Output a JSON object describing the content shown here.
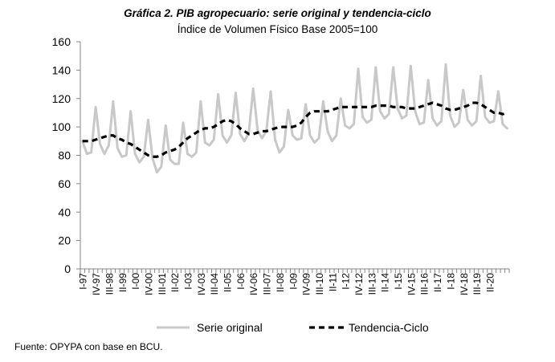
{
  "chart_data": {
    "type": "line",
    "title": "Gráfica 2. PIB agropecuario: serie original y tendencia-ciclo",
    "subtitle": "Índice de Volumen Físico Base 2005=100",
    "ylim": [
      0,
      160
    ],
    "yticks": [
      0,
      20,
      40,
      60,
      80,
      100,
      120,
      140,
      160
    ],
    "grid": false,
    "legend_position": "bottom",
    "x_labels": [
      "I-97",
      "IV-97",
      "III-98",
      "II-99",
      "I-00",
      "IV-00",
      "III-01",
      "II-02",
      "I-03",
      "IV-03",
      "III-04",
      "II-05",
      "I-06",
      "IV-06",
      "III-07",
      "II-08",
      "I-09",
      "IV-09",
      "III-10",
      "II-11",
      "I-12",
      "IV-12",
      "III-13",
      "II-14",
      "I-15",
      "IV-15",
      "III-16",
      "II-17",
      "I-18",
      "IV-18",
      "III-19",
      "II-20"
    ],
    "series": [
      {
        "name": "Serie original",
        "color": "#c8c8c8",
        "style": "solid",
        "values": [
          90,
          81,
          82,
          114,
          88,
          81,
          87,
          118,
          85,
          79,
          80,
          111,
          81,
          75,
          79,
          105,
          78,
          68,
          72,
          101,
          77,
          74,
          74,
          103,
          81,
          79,
          82,
          118,
          89,
          87,
          91,
          123,
          94,
          89,
          94,
          124,
          95,
          90,
          96,
          127,
          98,
          92,
          97,
          125,
          91,
          82,
          86,
          112,
          94,
          91,
          92,
          116,
          94,
          89,
          92,
          118,
          97,
          90,
          94,
          120,
          101,
          99,
          102,
          141,
          107,
          103,
          105,
          142,
          111,
          106,
          109,
          142,
          113,
          106,
          108,
          143,
          111,
          102,
          103,
          133,
          106,
          101,
          104,
          144,
          108,
          100,
          103,
          126,
          105,
          101,
          104,
          136,
          107,
          103,
          104,
          125,
          102,
          99
        ]
      },
      {
        "name": "Tendencia-Ciclo",
        "color": "#000000",
        "style": "dashed",
        "values": [
          90,
          90,
          90,
          91,
          92,
          93,
          94,
          94,
          92,
          91,
          89,
          88,
          86,
          84,
          82,
          80,
          79,
          79,
          80,
          82,
          83,
          84,
          86,
          89,
          92,
          94,
          96,
          98,
          99,
          99,
          100,
          102,
          104,
          105,
          104,
          102,
          99,
          97,
          95,
          95,
          96,
          97,
          97,
          98,
          99,
          100,
          100,
          100,
          100,
          101,
          103,
          107,
          110,
          111,
          111,
          111,
          111,
          112,
          113,
          114,
          114,
          114,
          114,
          114,
          114,
          114,
          114,
          115,
          115,
          115,
          115,
          114,
          114,
          114,
          113,
          113,
          113,
          114,
          115,
          116,
          117,
          116,
          115,
          113,
          112,
          112,
          113,
          114,
          115,
          117,
          117,
          116,
          114,
          112,
          110,
          110,
          109,
          110
        ]
      }
    ]
  },
  "source": "Fuente: OPYPA con base en BCU."
}
